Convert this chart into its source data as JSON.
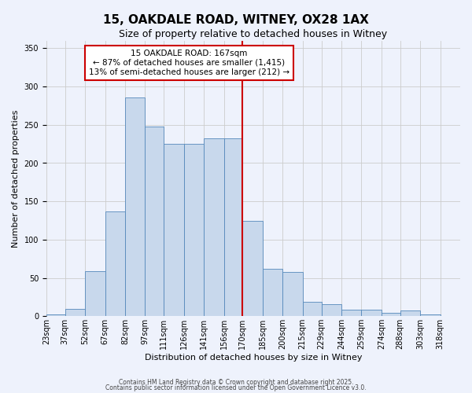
{
  "title": "15, OAKDALE ROAD, WITNEY, OX28 1AX",
  "subtitle": "Size of property relative to detached houses in Witney",
  "xlabel": "Distribution of detached houses by size in Witney",
  "ylabel": "Number of detached properties",
  "bar_left_edges": [
    23,
    37,
    52,
    67,
    82,
    97,
    111,
    126,
    141,
    156,
    170,
    185,
    200,
    215,
    229,
    244,
    259,
    274,
    288,
    303
  ],
  "bar_heights": [
    2,
    10,
    59,
    137,
    286,
    248,
    225,
    225,
    232,
    232,
    125,
    62,
    58,
    19,
    16,
    9,
    9,
    4,
    7,
    2
  ],
  "bin_labels": [
    "23sqm",
    "37sqm",
    "52sqm",
    "67sqm",
    "82sqm",
    "97sqm",
    "111sqm",
    "126sqm",
    "141sqm",
    "156sqm",
    "170sqm",
    "185sqm",
    "200sqm",
    "215sqm",
    "229sqm",
    "244sqm",
    "259sqm",
    "274sqm",
    "288sqm",
    "303sqm",
    "318sqm"
  ],
  "bar_color": "#c8d8ec",
  "bar_edge_color": "#5588bb",
  "vline_x": 170,
  "vline_color": "#cc0000",
  "annotation_text": "15 OAKDALE ROAD: 167sqm\n← 87% of detached houses are smaller (1,415)\n13% of semi-detached houses are larger (212) →",
  "annotation_box_color": "white",
  "annotation_box_edge": "#cc0000",
  "ylim": [
    0,
    360
  ],
  "yticks": [
    0,
    50,
    100,
    150,
    200,
    250,
    300,
    350
  ],
  "grid_color": "#cccccc",
  "bg_color": "#eef2fc",
  "footer1": "Contains HM Land Registry data © Crown copyright and database right 2025.",
  "footer2": "Contains public sector information licensed under the Open Government Licence v3.0.",
  "title_fontsize": 11,
  "subtitle_fontsize": 9,
  "axis_label_fontsize": 8,
  "tick_fontsize": 7,
  "annot_fontsize": 7.5
}
